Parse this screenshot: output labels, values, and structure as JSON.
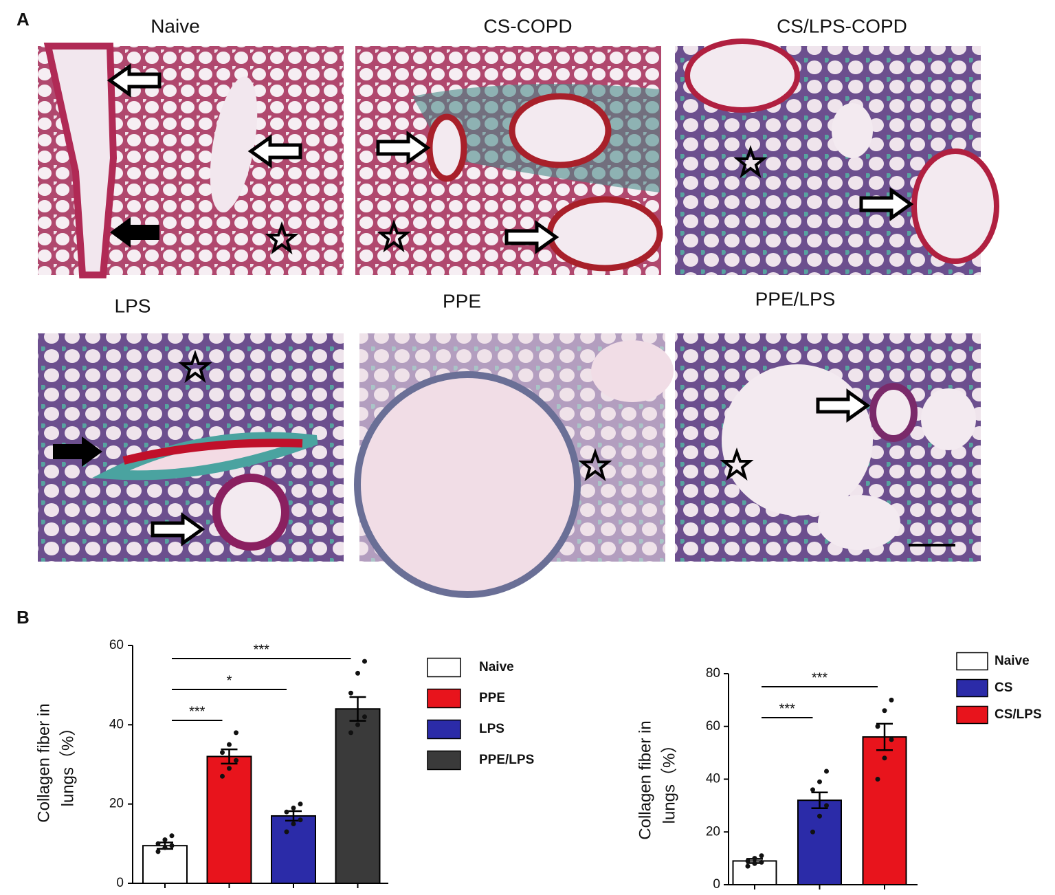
{
  "panel_a": {
    "label": "A",
    "images": [
      "Naive",
      "CS-COPD",
      "CS/LPS-COPD",
      "LPS",
      "PPE",
      "PPE/LPS"
    ]
  },
  "panel_b": {
    "label": "B"
  },
  "chart_data": [
    {
      "type": "bar",
      "ylabel": [
        "Collagen fiber in",
        "lungs（%）"
      ],
      "categories": [
        null,
        null,
        null,
        null
      ],
      "series": [
        {
          "name": "Naive",
          "color": "#ffffff",
          "values": [
            9.5,
            null,
            null,
            null
          ],
          "errors": [
            0.8,
            null,
            null,
            null
          ],
          "points": [
            [
              8,
              9,
              9.5,
              10,
              11,
              12
            ],
            null,
            null,
            null
          ]
        },
        {
          "name": "PPE",
          "color": "#e8141c",
          "values": [
            null,
            32,
            null,
            null
          ],
          "errors": [
            null,
            1.8,
            null,
            null
          ],
          "points": [
            null,
            [
              27,
              29,
              31,
              33,
              35,
              38
            ],
            null,
            null
          ]
        },
        {
          "name": "LPS",
          "color": "#2b2ba8",
          "values": [
            null,
            null,
            17,
            null
          ],
          "errors": [
            null,
            null,
            1.2,
            null
          ],
          "points": [
            null,
            null,
            [
              13,
              15,
              16,
              18,
              19,
              20
            ],
            null
          ]
        },
        {
          "name": "PPE/LPS",
          "color": "#3a3a3a",
          "values": [
            null,
            null,
            null,
            44
          ],
          "errors": [
            null,
            null,
            null,
            3
          ],
          "points": [
            null,
            null,
            null,
            [
              38,
              40,
              42,
              48,
              53,
              56
            ]
          ]
        }
      ],
      "comparisons": [
        {
          "label": "***",
          "groups": [
            "Naive",
            "PPE"
          ]
        },
        {
          "label": "*",
          "groups": [
            "Naive",
            "LPS"
          ]
        },
        {
          "label": "***",
          "groups": [
            "Naive",
            "PPE/LPS"
          ]
        }
      ],
      "ylim": [
        0,
        60
      ],
      "yticks": [
        0,
        20,
        40,
        60
      ]
    },
    {
      "type": "bar",
      "ylabel": [
        "Collagen fiber in",
        "lungs（%）"
      ],
      "categories": [
        null,
        null,
        null
      ],
      "series": [
        {
          "name": "Naive",
          "color": "#ffffff",
          "values": [
            9,
            null,
            null
          ],
          "errors": [
            0.8,
            null,
            null
          ],
          "points": [
            [
              7,
              8,
              8.5,
              9,
              10,
              11
            ],
            null,
            null
          ]
        },
        {
          "name": "CS",
          "color": "#2b2ba8",
          "values": [
            null,
            32,
            null
          ],
          "errors": [
            null,
            3,
            null
          ],
          "points": [
            null,
            [
              20,
              26,
              30,
              36,
              39,
              43
            ],
            null
          ]
        },
        {
          "name": "CS/LPS",
          "color": "#e8141c",
          "values": [
            null,
            null,
            56
          ],
          "errors": [
            null,
            null,
            5
          ],
          "points": [
            null,
            null,
            [
              40,
              48,
              55,
              60,
              66,
              70
            ]
          ]
        }
      ],
      "comparisons": [
        {
          "label": "***",
          "groups": [
            "Naive",
            "CS"
          ]
        },
        {
          "label": "***",
          "groups": [
            "Naive",
            "CS/LPS"
          ]
        }
      ],
      "ylim": [
        0,
        80
      ],
      "yticks": [
        0,
        20,
        40,
        60,
        80
      ]
    }
  ]
}
